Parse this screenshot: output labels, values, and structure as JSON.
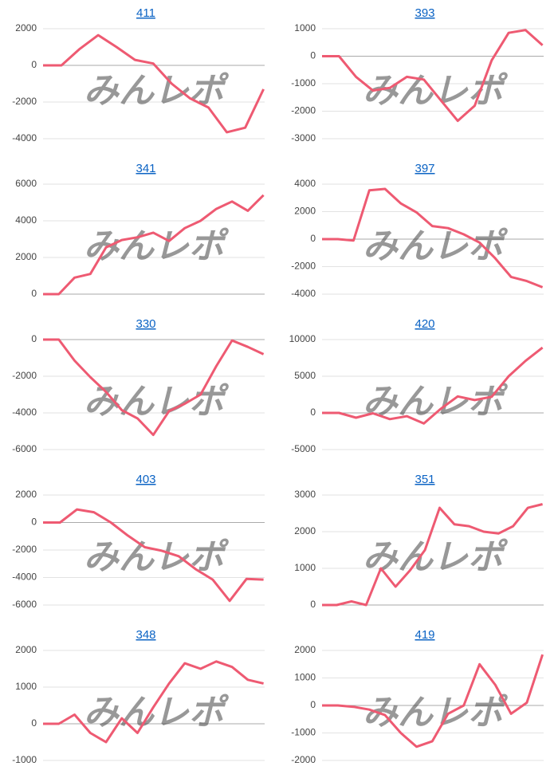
{
  "chart_data": [
    {
      "type": "line",
      "title": "411",
      "watermark": "みんレポ",
      "color": "#ee5a72",
      "values": [
        0,
        0,
        900,
        1650,
        1000,
        300,
        100,
        -1000,
        -1800,
        -2300,
        -3650,
        -3400,
        -1300
      ],
      "ylim": [
        -4000,
        2000
      ],
      "yticks": [
        -4000,
        -2000,
        0,
        2000
      ]
    },
    {
      "type": "line",
      "title": "393",
      "watermark": "みんレポ",
      "color": "#ee5a72",
      "values": [
        0,
        0,
        -750,
        -1250,
        -1150,
        -750,
        -850,
        -1600,
        -2350,
        -1800,
        -150,
        850,
        950,
        400
      ],
      "ylim": [
        -3000,
        1000
      ],
      "yticks": [
        -3000,
        -2000,
        -1000,
        0,
        1000
      ]
    },
    {
      "type": "line",
      "title": "341",
      "watermark": "みんレポ",
      "color": "#ee5a72",
      "values": [
        0,
        0,
        900,
        1100,
        2550,
        2950,
        3100,
        3350,
        2900,
        3600,
        4000,
        4650,
        5050,
        4550,
        5400
      ],
      "ylim": [
        0,
        6000
      ],
      "yticks": [
        0,
        2000,
        4000,
        6000
      ]
    },
    {
      "type": "line",
      "title": "397",
      "watermark": "みんレポ",
      "color": "#ee5a72",
      "values": [
        0,
        0,
        -100,
        3550,
        3650,
        2600,
        1950,
        950,
        800,
        350,
        -250,
        -1400,
        -2750,
        -3050,
        -3500
      ],
      "ylim": [
        -4000,
        4000
      ],
      "yticks": [
        -4000,
        -2000,
        0,
        2000,
        4000
      ]
    },
    {
      "type": "line",
      "title": "330",
      "watermark": "みんレポ",
      "color": "#ee5a72",
      "values": [
        0,
        0,
        -1150,
        -2050,
        -2850,
        -3850,
        -4300,
        -5200,
        -3900,
        -3500,
        -3000,
        -1450,
        -50,
        -400,
        -800
      ],
      "ylim": [
        -6000,
        0
      ],
      "yticks": [
        -6000,
        -4000,
        -2000,
        0
      ]
    },
    {
      "type": "line",
      "title": "420",
      "watermark": "みんレポ",
      "color": "#ee5a72",
      "values": [
        0,
        0,
        -650,
        -50,
        -850,
        -450,
        -1450,
        550,
        2250,
        1750,
        2200,
        5000,
        7100,
        8900
      ],
      "ylim": [
        -5000,
        10000
      ],
      "yticks": [
        -5000,
        0,
        5000,
        10000
      ]
    },
    {
      "type": "line",
      "title": "403",
      "watermark": "みんレポ",
      "color": "#ee5a72",
      "values": [
        0,
        0,
        950,
        750,
        0,
        -950,
        -1800,
        -2050,
        -2450,
        -3400,
        -4150,
        -5700,
        -4100,
        -4150
      ],
      "ylim": [
        -6000,
        2000
      ],
      "yticks": [
        -6000,
        -4000,
        -2000,
        0,
        2000
      ]
    },
    {
      "type": "line",
      "title": "351",
      "watermark": "みんレポ",
      "color": "#ee5a72",
      "values": [
        0,
        0,
        100,
        0,
        1000,
        500,
        950,
        1500,
        2650,
        2200,
        2150,
        2000,
        1950,
        2150,
        2650,
        2750
      ],
      "ylim": [
        0,
        3000
      ],
      "yticks": [
        0,
        1000,
        2000,
        3000
      ]
    },
    {
      "type": "line",
      "title": "348",
      "watermark": "みんレポ",
      "color": "#ee5a72",
      "values": [
        0,
        0,
        250,
        -250,
        -500,
        150,
        -250,
        450,
        1100,
        1650,
        1500,
        1700,
        1550,
        1200,
        1100
      ],
      "ylim": [
        -1000,
        2000
      ],
      "yticks": [
        -1000,
        0,
        1000,
        2000
      ]
    },
    {
      "type": "line",
      "title": "419",
      "watermark": "みんレポ",
      "color": "#ee5a72",
      "values": [
        0,
        0,
        -50,
        -150,
        -350,
        -1000,
        -1500,
        -1300,
        -300,
        0,
        1500,
        750,
        -300,
        100,
        1850
      ],
      "ylim": [
        -2000,
        2000
      ],
      "yticks": [
        -2000,
        -1000,
        0,
        1000,
        2000
      ]
    }
  ]
}
